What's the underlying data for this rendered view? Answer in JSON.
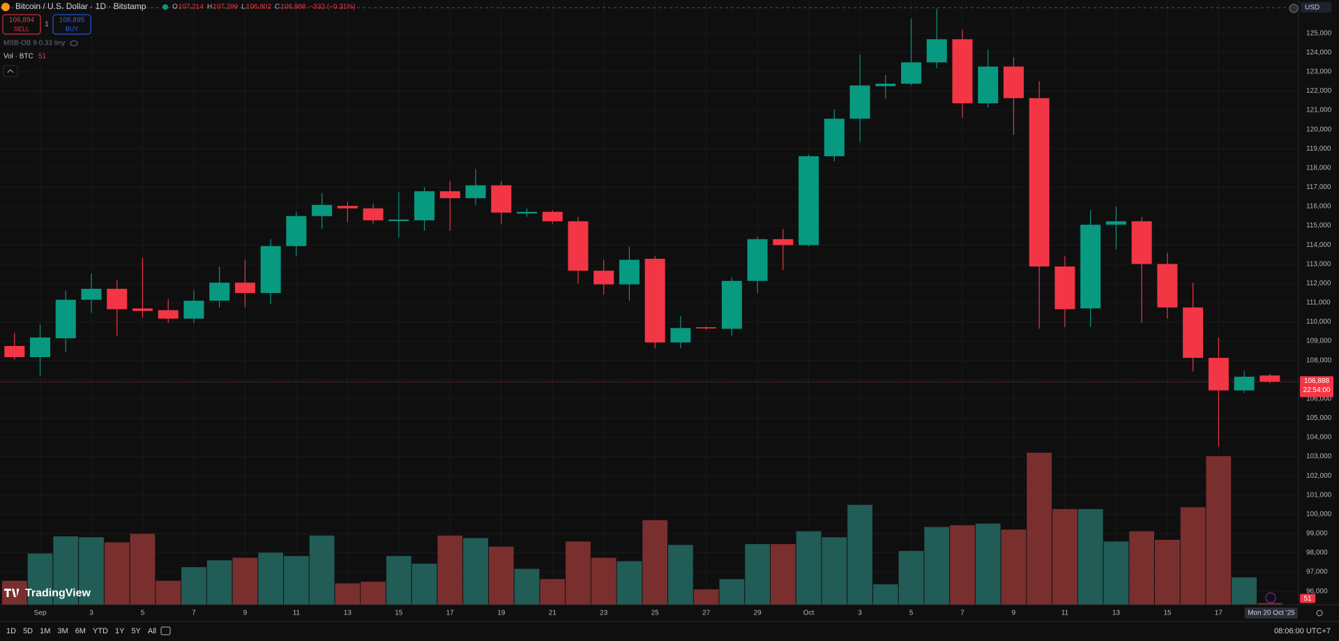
{
  "header": {
    "symbol": "Bitcoin / U.S. Dollar · 1D · Bitstamp",
    "ohlc": [
      {
        "key": "O",
        "value": "107,214"
      },
      {
        "key": "H",
        "value": "107,299"
      },
      {
        "key": "L",
        "value": "106,802"
      },
      {
        "key": "C",
        "value": "106,888"
      }
    ],
    "change": "−332 (−0.31%)",
    "sell_price": "106,894",
    "sell": "SELL",
    "spread": "1",
    "buy_price": "106,895",
    "buy": "BUY",
    "indicator": "MSB-OB 9 0.33 tiny",
    "volume_title": "Vol · BTC",
    "currency": "USD",
    "logo": "TradingView"
  },
  "toolbar": {
    "ranges": [
      "1D",
      "5D",
      "1M",
      "3M",
      "6M",
      "YTD",
      "1Y",
      "5Y",
      "All"
    ],
    "clock": "08:06:00 UTC+7"
  },
  "chart_data": {
    "type": "candlestick",
    "categories": [
      null,
      "Sep",
      null,
      "3",
      null,
      "5",
      null,
      "7",
      null,
      "9",
      null,
      "11",
      null,
      "13",
      null,
      "15",
      null,
      "17",
      null,
      "19",
      null,
      "21",
      null,
      "23",
      null,
      "25",
      null,
      "27",
      null,
      "29",
      null,
      "Oct",
      null,
      "3",
      null,
      "5",
      null,
      "7",
      null,
      "9",
      null,
      "11",
      null,
      "13",
      null,
      "15",
      null,
      "17",
      null,
      null
    ],
    "open": [
      108750,
      108170,
      109150,
      111150,
      111720,
      110700,
      110610,
      110170,
      111100,
      112040,
      111500,
      113940,
      115500,
      116030,
      115900,
      115240,
      115280,
      116790,
      116430,
      117100,
      115630,
      115720,
      115230,
      112660,
      111950,
      113280,
      108930,
      109720,
      109640,
      112130,
      114300,
      113990,
      118610,
      120560,
      122250,
      122380,
      123490,
      124690,
      121360,
      123270,
      121630,
      112880,
      110700,
      115050,
      115230,
      113010,
      110750,
      108130,
      106440,
      107214
    ],
    "high": [
      109420,
      109860,
      111640,
      112520,
      112170,
      113320,
      111190,
      111640,
      112880,
      113230,
      114300,
      115720,
      116700,
      116250,
      116160,
      116740,
      117010,
      117320,
      117940,
      117320,
      115900,
      115810,
      115460,
      113230,
      113900,
      113410,
      110300,
      109770,
      112310,
      114430,
      114830,
      118700,
      121050,
      123890,
      122820,
      125760,
      126290,
      125180,
      124160,
      123760,
      122510,
      113410,
      115810,
      115990,
      115460,
      113590,
      112040,
      109190,
      107460,
      107299
    ],
    "low": [
      108040,
      107200,
      108440,
      110480,
      109280,
      110220,
      109950,
      109950,
      110750,
      110750,
      110930,
      113410,
      114830,
      115190,
      115100,
      114390,
      114740,
      114740,
      116070,
      115100,
      115460,
      115100,
      111990,
      111410,
      111100,
      108620,
      108620,
      109590,
      109280,
      111500,
      112700,
      113940,
      118340,
      119360,
      121580,
      122290,
      123180,
      120600,
      121140,
      119720,
      109640,
      109730,
      109730,
      113770,
      109950,
      110170,
      107420,
      103510,
      106310,
      106802
    ],
    "close": [
      108170,
      109190,
      111150,
      111720,
      110660,
      110570,
      110170,
      111100,
      112040,
      111500,
      113940,
      115500,
      116080,
      115900,
      115280,
      115320,
      116790,
      116430,
      117100,
      115680,
      115720,
      115230,
      112660,
      111950,
      113230,
      108930,
      109680,
      109660,
      112130,
      114300,
      113990,
      118610,
      120560,
      122290,
      122380,
      123490,
      124690,
      121360,
      123270,
      121630,
      112880,
      110660,
      115050,
      115230,
      113010,
      110750,
      108130,
      106440,
      107150,
      106888
    ],
    "volume": [
      700,
      1500,
      2000,
      1975,
      1825,
      2075,
      700,
      1100,
      1300,
      1375,
      1525,
      1425,
      2025,
      625,
      675,
      1425,
      1200,
      2025,
      1950,
      1700,
      1050,
      750,
      1850,
      1375,
      1275,
      2475,
      1750,
      450,
      750,
      1775,
      1775,
      2150,
      1975,
      2925,
      600,
      1575,
      2275,
      2325,
      2375,
      2200,
      4450,
      2800,
      2800,
      1850,
      2150,
      1900,
      2850,
      4350,
      800,
      51
    ],
    "up_color": "#089981",
    "down_color": "#f23645",
    "volume_up_color": "#215c56",
    "volume_down_color": "#7a2f2f",
    "last_close_label": "106,888",
    "countdown": "22:54:00",
    "crosshair_label": "Mon 20 Oct '25",
    "ylim": [
      95300,
      126730
    ],
    "yticks": [
      {
        "value": 96000,
        "label": "96,000"
      },
      {
        "value": 97000,
        "label": "97,000"
      },
      {
        "value": 98000,
        "label": "98,000"
      },
      {
        "value": 99000,
        "label": "99,000"
      },
      {
        "value": 100000,
        "label": "100,000"
      },
      {
        "value": 101000,
        "label": "101,000"
      },
      {
        "value": 102000,
        "label": "102,000"
      },
      {
        "value": 103000,
        "label": "103,000"
      },
      {
        "value": 104000,
        "label": "104,000"
      },
      {
        "value": 105000,
        "label": "105,000"
      },
      {
        "value": 106000,
        "label": "106,000"
      },
      {
        "value": 107000,
        "label": "107,000"
      },
      {
        "value": 108000,
        "label": "108,000"
      },
      {
        "value": 109000,
        "label": "109,000"
      },
      {
        "value": 110000,
        "label": "110,000"
      },
      {
        "value": 111000,
        "label": "111,000"
      },
      {
        "value": 112000,
        "label": "112,000"
      },
      {
        "value": 113000,
        "label": "113,000"
      },
      {
        "value": 114000,
        "label": "114,000"
      },
      {
        "value": 115000,
        "label": "115,000"
      },
      {
        "value": 116000,
        "label": "116,000"
      },
      {
        "value": 117000,
        "label": "117,000"
      },
      {
        "value": 118000,
        "label": "118,000"
      },
      {
        "value": 119000,
        "label": "119,000"
      },
      {
        "value": 120000,
        "label": "120,000"
      },
      {
        "value": 121000,
        "label": "121,000"
      },
      {
        "value": 122000,
        "label": "122,000"
      },
      {
        "value": 123000,
        "label": "123,000"
      },
      {
        "value": 124000,
        "label": "124,000"
      },
      {
        "value": 125000,
        "label": "125,000"
      }
    ],
    "grid": true
  }
}
